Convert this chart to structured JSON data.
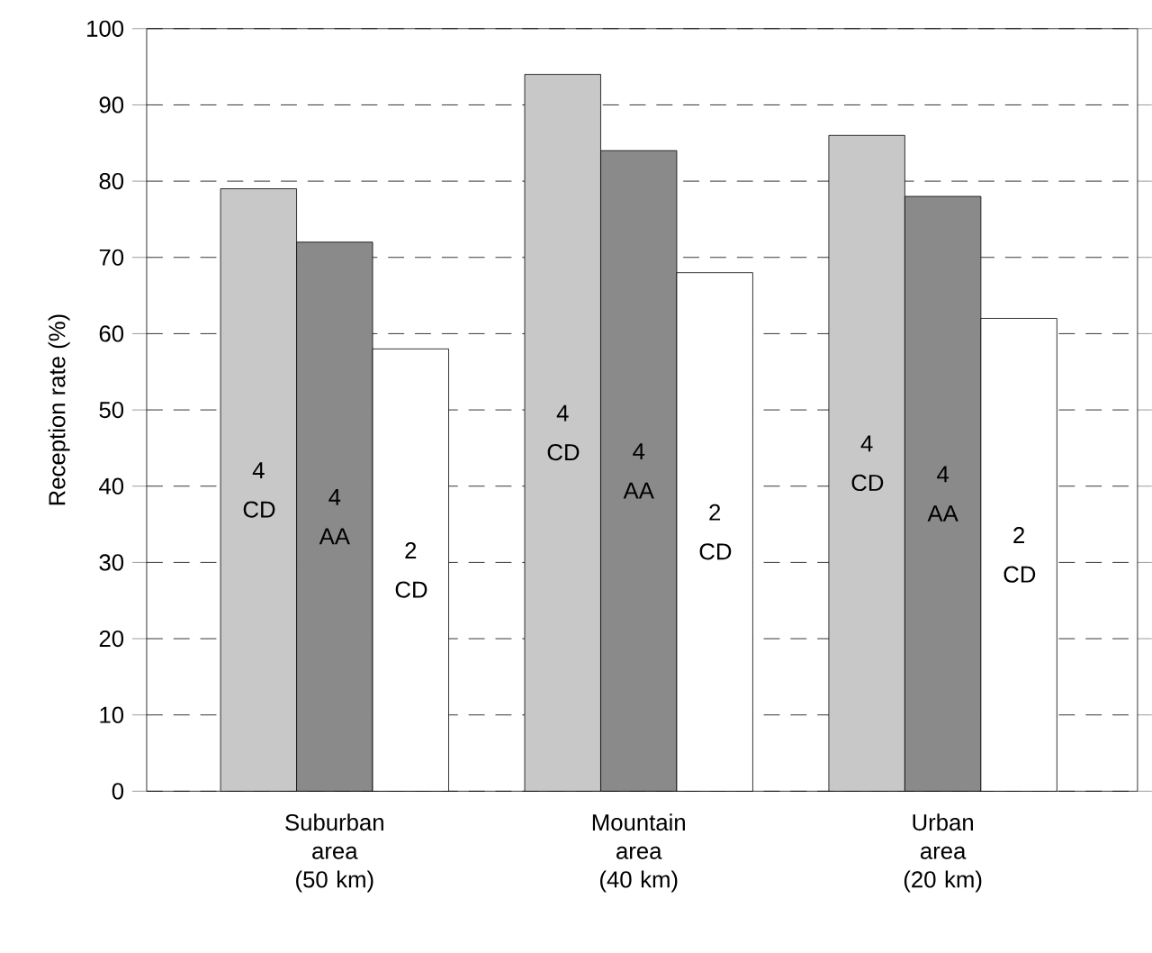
{
  "chart_data": {
    "type": "bar",
    "ylabel": "Reception rate (%)",
    "categories": [
      "Suburban area (50 km)",
      "Mountain area (40 km)",
      "Urban area (20 km)"
    ],
    "series": [
      {
        "name": "4 CD",
        "color": "#c8c8c8",
        "values": [
          79,
          94,
          86
        ]
      },
      {
        "name": "4 AA",
        "color": "#8a8a8a",
        "values": [
          72,
          84,
          78
        ]
      },
      {
        "name": "2 CD",
        "color": "#ffffff",
        "values": [
          58,
          68,
          62
        ]
      }
    ],
    "ylim": [
      0,
      100
    ],
    "yticks": [
      0,
      10,
      20,
      30,
      40,
      50,
      60,
      70,
      80,
      90,
      100
    ],
    "grid": "y"
  }
}
